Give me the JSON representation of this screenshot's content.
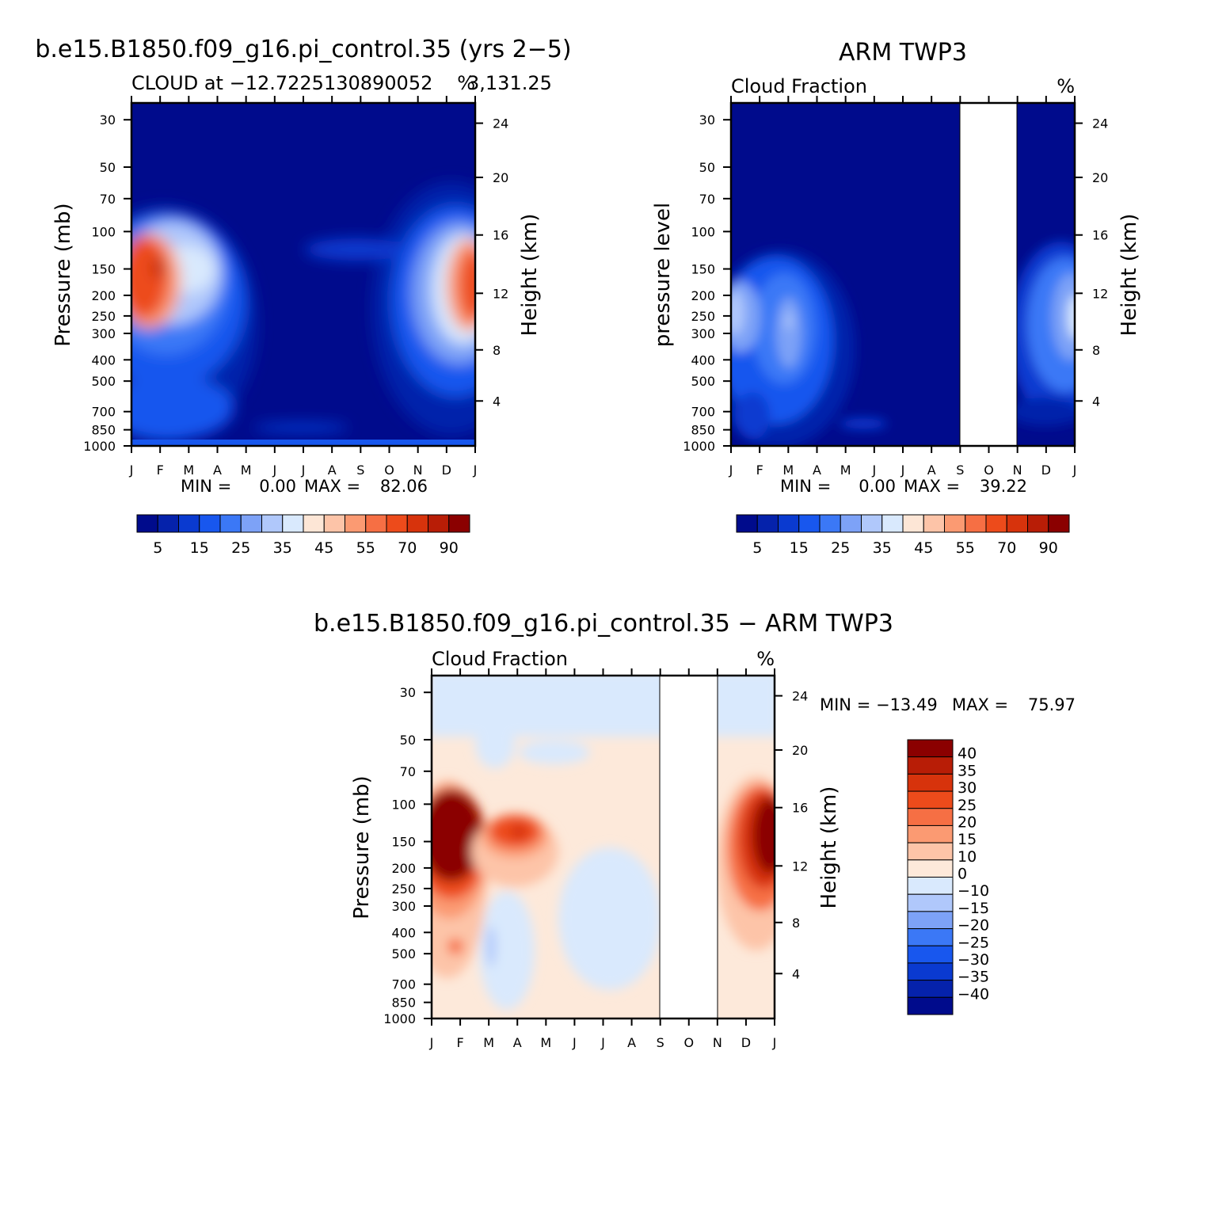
{
  "colors": {
    "abs_palette": [
      "#000b8c",
      "#0522ab",
      "#0a3ad0",
      "#1857ee",
      "#3b78f6",
      "#7da2f7",
      "#b0c8fb",
      "#d9e9fd",
      "#fde6d6",
      "#fdc4a8",
      "#fb9a72",
      "#f66f44",
      "#ed4b1b",
      "#d7330c",
      "#b81d06",
      "#8b0000"
    ],
    "diff_palette": [
      "#000b8c",
      "#0522ab",
      "#0a3ad0",
      "#1857ee",
      "#3b78f6",
      "#7da2f7",
      "#b0c8fb",
      "#d9e9fd",
      "#fde9da",
      "#fdc4a8",
      "#fb9a72",
      "#f66f44",
      "#ed4b1b",
      "#d7330c",
      "#b81d06",
      "#8b0000"
    ]
  },
  "chart_data": [
    {
      "type": "heatmap",
      "title": "b.e15.B1850.f09_g16.pi_control.35 (yrs 2−5)",
      "subtitle": "CLOUD at −12.7225130890052",
      "subtitle_extra": "3,131.25",
      "units": "%",
      "ylabel": "Pressure (mb)",
      "y2label": "Height (km)",
      "x_ticks": [
        "J",
        "F",
        "M",
        "A",
        "M",
        "J",
        "J",
        "A",
        "S",
        "O",
        "N",
        "D",
        "J"
      ],
      "y_ticks": [
        "30",
        "50",
        "70",
        "100",
        "150",
        "200",
        "250",
        "300",
        "400",
        "500",
        "700",
        "850",
        "1000"
      ],
      "y2_ticks": [
        "24",
        "20",
        "16",
        "12",
        "8",
        "4"
      ],
      "min_label": "MIN =",
      "min_value": "0.00",
      "max_label": "MAX =",
      "max_value": "82.06",
      "zlim": [
        0,
        82.06
      ],
      "colorbar_labels": [
        "5",
        "15",
        "25",
        "35",
        "45",
        "55",
        "70",
        "90"
      ]
    },
    {
      "type": "heatmap",
      "title": "ARM TWP3",
      "subtitle": "Cloud Fraction",
      "units": "%",
      "ylabel": "pressure level",
      "y2label": "Height (km)",
      "x_ticks": [
        "J",
        "F",
        "M",
        "A",
        "M",
        "J",
        "J",
        "A",
        "S",
        "O",
        "N",
        "D",
        "J"
      ],
      "y_ticks": [
        "30",
        "50",
        "70",
        "100",
        "150",
        "200",
        "250",
        "300",
        "400",
        "500",
        "700",
        "850",
        "1000"
      ],
      "y2_ticks": [
        "24",
        "20",
        "16",
        "12",
        "8",
        "4"
      ],
      "missing_months": [
        "Sep",
        "Oct"
      ],
      "min_label": "MIN =",
      "min_value": "0.00",
      "max_label": "MAX =",
      "max_value": "39.22",
      "zlim": [
        0,
        39.22
      ],
      "colorbar_labels": [
        "5",
        "15",
        "25",
        "35",
        "45",
        "55",
        "70",
        "90"
      ]
    },
    {
      "type": "heatmap",
      "title": "b.e15.B1850.f09_g16.pi_control.35 − ARM TWP3",
      "subtitle": "Cloud Fraction",
      "units": "%",
      "ylabel": "Pressure (mb)",
      "y2label": "Height (km)",
      "x_ticks": [
        "J",
        "F",
        "M",
        "A",
        "M",
        "J",
        "J",
        "A",
        "S",
        "O",
        "N",
        "D",
        "J"
      ],
      "y_ticks": [
        "30",
        "50",
        "70",
        "100",
        "150",
        "200",
        "250",
        "300",
        "400",
        "500",
        "700",
        "850",
        "1000"
      ],
      "y2_ticks": [
        "24",
        "20",
        "16",
        "12",
        "8",
        "4"
      ],
      "missing_months": [
        "Sep",
        "Oct"
      ],
      "min_label": "MIN = −13.49",
      "max_label": "MAX =",
      "max_value": "75.97",
      "zlim": [
        -13.49,
        75.97
      ],
      "colorbar_labels": [
        "40",
        "35",
        "30",
        "25",
        "20",
        "15",
        "10",
        "0",
        "−10",
        "−15",
        "−20",
        "−25",
        "−30",
        "−35",
        "−40"
      ]
    }
  ]
}
